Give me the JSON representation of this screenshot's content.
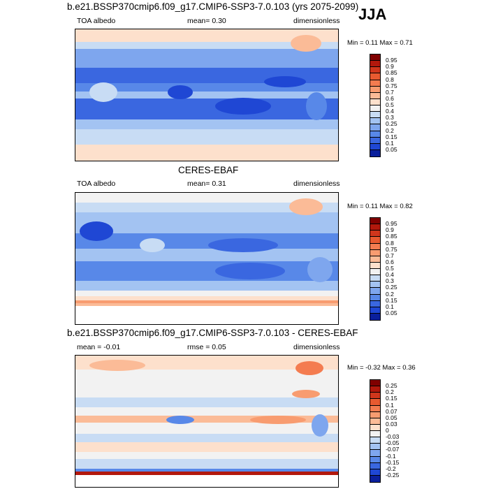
{
  "season": "JJA",
  "panels": [
    {
      "title": "b.e21.BSSP370cmip6.f09_g17.CMIP6-SSP3-7.0.103 (yrs 2075-2099)",
      "left": "TOA albedo",
      "middle": "mean=   0.30",
      "right": "dimensionless",
      "minmax": "Min =   0.11 Max =   0.71",
      "colorbar": {
        "labels": [
          "0.95",
          "0.9",
          "0.85",
          "0.8",
          "0.75",
          "0.7",
          "0.6",
          "0.5",
          "0.4",
          "0.3",
          "0.25",
          "0.2",
          "0.15",
          "0.1",
          "0.05"
        ],
        "colors": [
          "#800000",
          "#b2180c",
          "#d0361c",
          "#e85a30",
          "#f47c50",
          "#f89c70",
          "#fbbb97",
          "#fde0cc",
          "#f2f2f2",
          "#c8dcf4",
          "#a3c3f2",
          "#7ea6ee",
          "#5888e8",
          "#3a67e0",
          "#1f47d4",
          "#0a1f9c"
        ]
      }
    },
    {
      "title": "CERES-EBAF",
      "left": "TOA albedo",
      "middle": "mean=   0.31",
      "right": "dimensionless",
      "minmax": "Min =   0.11 Max =   0.82",
      "colorbar": {
        "labels": [
          "0.95",
          "0.9",
          "0.85",
          "0.8",
          "0.75",
          "0.7",
          "0.6",
          "0.5",
          "0.4",
          "0.3",
          "0.25",
          "0.2",
          "0.15",
          "0.1",
          "0.05"
        ],
        "colors": [
          "#800000",
          "#b2180c",
          "#d0361c",
          "#e85a30",
          "#f47c50",
          "#f89c70",
          "#fbbb97",
          "#fde0cc",
          "#f2f2f2",
          "#c8dcf4",
          "#a3c3f2",
          "#7ea6ee",
          "#5888e8",
          "#3a67e0",
          "#1f47d4",
          "#0a1f9c"
        ]
      }
    },
    {
      "title": "b.e21.BSSP370cmip6.f09_g17.CMIP6-SSP3-7.0.103 - CERES-EBAF",
      "left": "mean =  -0.01",
      "middle": "rmse =  0.05",
      "right": "dimensionless",
      "minmax": "Min =  -0.32 Max =   0.36",
      "colorbar": {
        "labels": [
          "0.25",
          "0.2",
          "0.15",
          "0.1",
          "0.07",
          "0.05",
          "0.03",
          "0",
          "-0.03",
          "-0.05",
          "-0.07",
          "-0.1",
          "-0.15",
          "-0.2",
          "-0.25"
        ],
        "colors": [
          "#800000",
          "#b2180c",
          "#d0361c",
          "#e85a30",
          "#f47c50",
          "#f89c70",
          "#fbbb97",
          "#fde0cc",
          "#f2f2f2",
          "#c8dcf4",
          "#a3c3f2",
          "#7ea6ee",
          "#5888e8",
          "#3a67e0",
          "#1f47d4",
          "#0a1f9c"
        ]
      }
    }
  ]
}
